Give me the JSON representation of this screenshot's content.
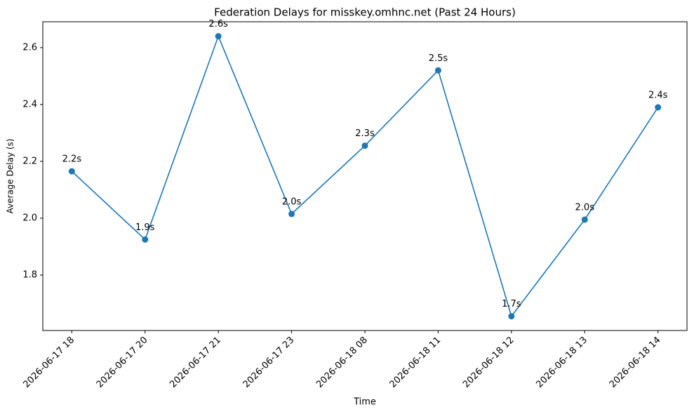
{
  "chart_data": {
    "type": "line",
    "title": "Federation Delays for misskey.omhnc.net (Past 24 Hours)",
    "x_label": "Time",
    "y_label": "Average Delay (s)",
    "categories": [
      "2026-06-17 18",
      "2026-06-17 20",
      "2026-06-17 21",
      "2026-06-17 23",
      "2026-06-18 08",
      "2026-06-18 11",
      "2026-06-18 12",
      "2026-06-18 13",
      "2026-06-18 14"
    ],
    "values": [
      2.165,
      1.925,
      2.64,
      2.015,
      2.255,
      2.52,
      1.655,
      1.995,
      2.39
    ],
    "value_labels": [
      "2.2s",
      "1.9s",
      "2.6s",
      "2.0s",
      "2.3s",
      "2.5s",
      "1.7s",
      "2.0s",
      "2.4s"
    ],
    "color": "#1f77b4",
    "ylim": [
      1.605,
      2.691
    ],
    "yticks": [
      1.8,
      {
        "value": 2,
        "label": "2.0"
      },
      2.2,
      2.4,
      2.6
    ],
    "grid": false
  }
}
